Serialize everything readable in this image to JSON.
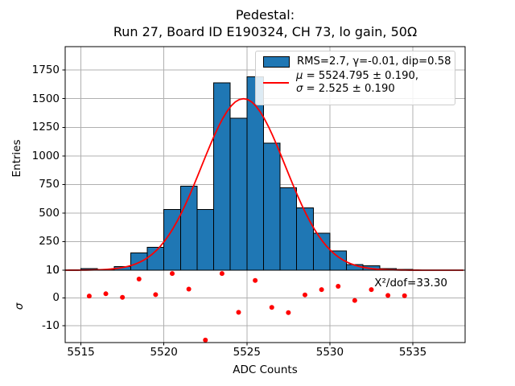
{
  "chart_data": {
    "type": "bar",
    "title_line1": "Pedestal:",
    "title_line2": "Run 27, Board ID E190324, CH 73, lo gain, 50Ω",
    "xlabel": "ADC Counts",
    "ylabel": "Entries",
    "ylabel_residual": "σ",
    "annotation_chi2": "X²/dof=33.30",
    "grid": true,
    "xlim": [
      5514.05,
      5538.15
    ],
    "ylim_main": [
      0,
      1955
    ],
    "ylim_residual": [
      -16.1,
      10
    ],
    "x_ticks": [
      5515,
      5520,
      5525,
      5530,
      5535
    ],
    "y_ticks_main": [
      0,
      250,
      500,
      750,
      1000,
      1250,
      1500,
      1750
    ],
    "y_ticks_residual": [
      10,
      0,
      -10
    ],
    "histogram": {
      "bin_start": 5515,
      "bin_width": 1,
      "counts": [
        14,
        8,
        30,
        150,
        200,
        530,
        735,
        530,
        1640,
        1330,
        1690,
        1110,
        720,
        545,
        325,
        170,
        50,
        40,
        15,
        8
      ],
      "fill_color": "#1f77b4",
      "edge_color": "#000000"
    },
    "fit": {
      "mu": 5524.795,
      "sigma": 2.525,
      "amplitude": 1500,
      "color": "#ff0000"
    },
    "residuals": {
      "x": [
        5515.5,
        5516.5,
        5517.5,
        5518.5,
        5519.5,
        5520.5,
        5521.5,
        5522.5,
        5523.5,
        5524.5,
        5525.5,
        5526.5,
        5527.5,
        5528.5,
        5529.5,
        5530.5,
        5531.5,
        5532.5,
        5533.5,
        5534.5
      ],
      "y": [
        0.7,
        1.5,
        0.2,
        6.8,
        1.2,
        8.8,
        3.2,
        -15.2,
        8.8,
        -5.2,
        6.3,
        -3.4,
        -5.3,
        1.1,
        3.0,
        4.2,
        -0.9,
        3.0,
        0.9,
        0.8
      ],
      "color": "#ff0000"
    },
    "legend": {
      "rms_label": "RMS=2.7, γ=-0.01, dip=0.58",
      "mu_symbol": "μ",
      "mu_rest": " = 5524.795 ± 0.190,",
      "sigma_symbol": "σ",
      "sigma_rest": " = 2.525 ± 0.190",
      "patch_color": "#1f77b4",
      "line_color": "#ff0000"
    },
    "grid_color": "#b0b0b0"
  }
}
